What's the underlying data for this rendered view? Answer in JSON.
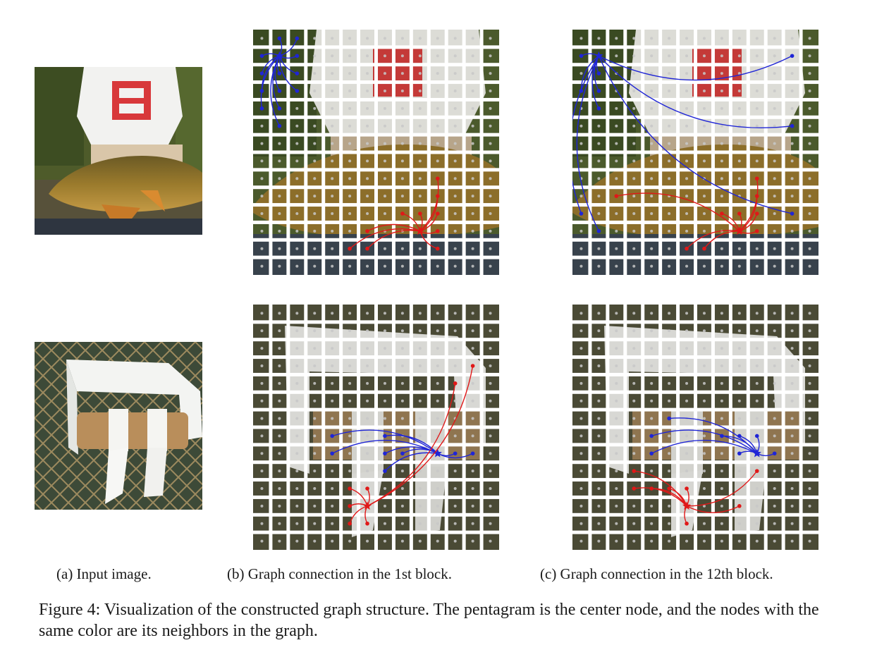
{
  "figure": {
    "caption": "Figure 4: Visualization of the constructed graph structure. The pentagram is the center node, and the nodes with the same color are its neighbors in the graph.",
    "subcaptions": {
      "a": "(a) Input image.",
      "b": "(b) Graph connection in the 1st block.",
      "c": "(c) Graph connection in the 12th block."
    }
  },
  "images": {
    "fish": {
      "subject": "person in white t-shirt holding a carp fish"
    },
    "toilet": {
      "subject": "toilet paper holder with empty cardboard roll"
    }
  },
  "colors": {
    "grid_line": "#ffffff",
    "patch_dot": "#c8c8c8",
    "blue_graph": "#1f25d6",
    "red_graph": "#e01818"
  },
  "grid": {
    "rows": 14,
    "cols": 14
  },
  "graphs": {
    "fish_block1": {
      "blue": {
        "center": [
          1,
          1
        ],
        "neighbors": [
          [
            0,
            1
          ],
          [
            0,
            2
          ],
          [
            1,
            0
          ],
          [
            1,
            2
          ],
          [
            2,
            0
          ],
          [
            2,
            1
          ],
          [
            2,
            2
          ],
          [
            3,
            0
          ],
          [
            3,
            1
          ],
          [
            3,
            2
          ],
          [
            4,
            0
          ],
          [
            4,
            1
          ],
          [
            5,
            1
          ]
        ]
      },
      "red": {
        "center": [
          11,
          9
        ],
        "neighbors": [
          [
            8,
            10
          ],
          [
            9,
            10
          ],
          [
            10,
            8
          ],
          [
            10,
            9
          ],
          [
            10,
            10
          ],
          [
            11,
            6
          ],
          [
            11,
            10
          ],
          [
            12,
            5
          ],
          [
            12,
            6
          ],
          [
            12,
            10
          ]
        ]
      }
    },
    "fish_block12": {
      "blue": {
        "center": [
          1,
          1
        ],
        "neighbors": [
          [
            1,
            0
          ],
          [
            1,
            12
          ],
          [
            2,
            1
          ],
          [
            3,
            0
          ],
          [
            3,
            1
          ],
          [
            4,
            1
          ],
          [
            5,
            12
          ],
          [
            10,
            0
          ],
          [
            10,
            12
          ],
          [
            11,
            1
          ]
        ]
      },
      "red": {
        "center": [
          11,
          9
        ],
        "neighbors": [
          [
            8,
            10
          ],
          [
            9,
            2
          ],
          [
            9,
            10
          ],
          [
            10,
            8
          ],
          [
            10,
            9
          ],
          [
            10,
            10
          ],
          [
            11,
            10
          ],
          [
            12,
            6
          ],
          [
            12,
            7
          ]
        ]
      }
    },
    "toilet_block1": {
      "blue": {
        "center": [
          8,
          10
        ],
        "neighbors": [
          [
            7,
            4
          ],
          [
            7,
            7
          ],
          [
            8,
            4
          ],
          [
            8,
            7
          ],
          [
            8,
            8
          ],
          [
            8,
            11
          ],
          [
            8,
            12
          ],
          [
            9,
            7
          ]
        ]
      },
      "red": {
        "center": [
          11,
          6
        ],
        "neighbors": [
          [
            3,
            12
          ],
          [
            4,
            11
          ],
          [
            10,
            5
          ],
          [
            10,
            6
          ],
          [
            11,
            5
          ],
          [
            12,
            5
          ],
          [
            12,
            6
          ]
        ]
      }
    },
    "toilet_block12": {
      "blue": {
        "center": [
          8,
          10
        ],
        "neighbors": [
          [
            6,
            5
          ],
          [
            7,
            4
          ],
          [
            7,
            8
          ],
          [
            7,
            9
          ],
          [
            7,
            10
          ],
          [
            8,
            4
          ],
          [
            8,
            9
          ],
          [
            8,
            11
          ]
        ]
      },
      "red": {
        "center": [
          11,
          6
        ],
        "neighbors": [
          [
            9,
            3
          ],
          [
            9,
            10
          ],
          [
            10,
            3
          ],
          [
            10,
            4
          ],
          [
            10,
            5
          ],
          [
            10,
            6
          ],
          [
            11,
            9
          ],
          [
            12,
            6
          ]
        ]
      }
    }
  }
}
